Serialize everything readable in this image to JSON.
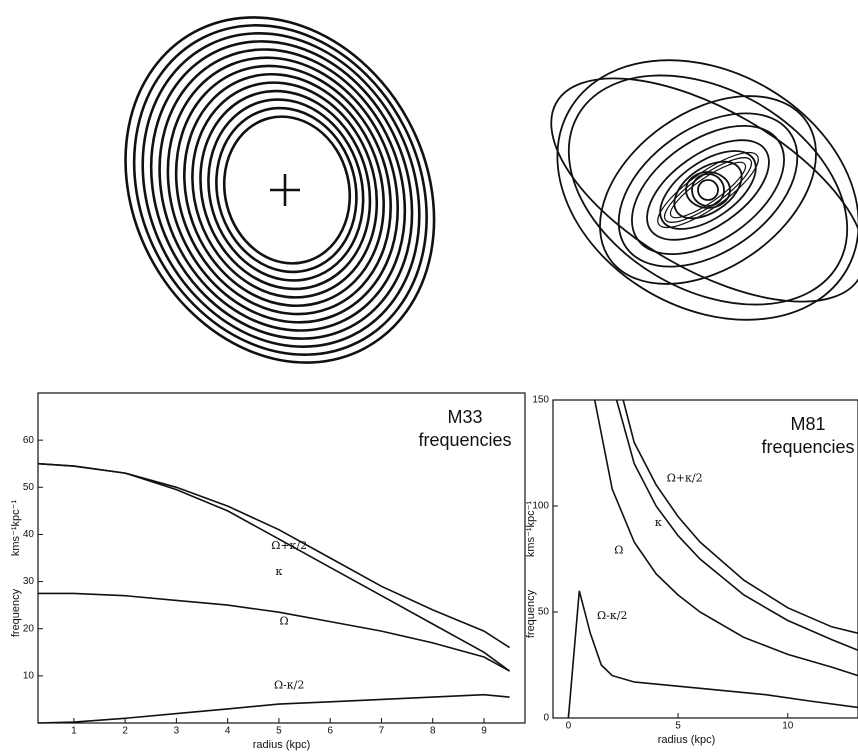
{
  "chart_data": [
    {
      "type": "line",
      "title": "M33",
      "subtitle": "frequencies",
      "ylabel": "frequency",
      "yunit": "kms⁻¹kpc⁻¹",
      "xlabel": "radius  (kpc)",
      "xlim": [
        0.3,
        9.8
      ],
      "ylim": [
        0,
        70
      ],
      "xticks": [
        1,
        2,
        3,
        4,
        5,
        6,
        7,
        8,
        9
      ],
      "yticks": [
        10,
        20,
        30,
        40,
        50,
        60
      ],
      "series": [
        {
          "name": "Ω+κ/2",
          "color": "#111",
          "x": [
            0.3,
            1,
            2,
            3,
            4,
            5,
            6,
            7,
            8,
            9,
            9.5
          ],
          "values": [
            55,
            54.5,
            53,
            50,
            46,
            41,
            35,
            29,
            24,
            19.5,
            16
          ],
          "label_at": [
            5.2,
            37.5
          ]
        },
        {
          "name": "κ",
          "color": "#111",
          "x": [
            0.3,
            1,
            2,
            3,
            4,
            5,
            6,
            7,
            8,
            9,
            9.5
          ],
          "values": [
            55,
            54.5,
            53,
            49.5,
            45,
            39,
            33,
            27,
            21,
            15,
            11
          ],
          "label_at": [
            5,
            32
          ]
        },
        {
          "name": "Ω",
          "color": "#111",
          "x": [
            0.3,
            1,
            2,
            3,
            4,
            5,
            6,
            7,
            8,
            9,
            9.5
          ],
          "values": [
            27.5,
            27.5,
            27,
            26,
            25,
            23.5,
            21.5,
            19.5,
            17,
            14,
            11
          ],
          "label_at": [
            5.1,
            21.5
          ]
        },
        {
          "name": "Ω-κ/2",
          "color": "#111",
          "x": [
            0.3,
            1,
            2,
            3,
            4,
            5,
            6,
            7,
            8,
            9,
            9.5
          ],
          "values": [
            0,
            0.2,
            1,
            2,
            3,
            4,
            4.5,
            5,
            5.5,
            6,
            5.5
          ],
          "label_at": [
            5.2,
            8
          ]
        }
      ]
    },
    {
      "type": "line",
      "title": "M81",
      "subtitle": "frequencies",
      "ylabel": "frequency",
      "yunit": "kms⁻¹kpc⁻¹",
      "xlabel": "radius  (kpc)",
      "xlim": [
        -0.7,
        13.2
      ],
      "ylim": [
        0,
        150
      ],
      "xticks": [
        0,
        5,
        10
      ],
      "yticks": [
        0,
        50,
        100,
        150
      ],
      "series": [
        {
          "name": "Ω+κ/2",
          "color": "#111",
          "x": [
            2.5,
            3,
            4,
            5,
            6,
            8,
            10,
            12,
            13.2
          ],
          "values": [
            150,
            130,
            110,
            95,
            83,
            65,
            52,
            43,
            40
          ],
          "label_at": [
            5.3,
            113
          ]
        },
        {
          "name": "κ",
          "color": "#111",
          "x": [
            2.2,
            3,
            4,
            5,
            6,
            8,
            10,
            12,
            13.2
          ],
          "values": [
            150,
            120,
            100,
            86,
            75,
            58,
            46,
            37,
            32
          ],
          "label_at": [
            4.1,
            92
          ]
        },
        {
          "name": "Ω",
          "color": "#111",
          "x": [
            1.2,
            2,
            3,
            4,
            5,
            6,
            8,
            10,
            12,
            13.2
          ],
          "values": [
            150,
            108,
            83,
            68,
            58,
            50,
            38,
            30,
            24,
            20
          ],
          "label_at": [
            2.3,
            79
          ]
        },
        {
          "name": "Ω-κ/2",
          "color": "#111",
          "x": [
            0,
            0.5,
            1,
            1.5,
            2,
            3,
            5,
            7,
            9,
            11,
            13.2
          ],
          "values": [
            0,
            60,
            40,
            25,
            20,
            17,
            15,
            13,
            11,
            8,
            5
          ],
          "label_at": [
            2,
            48
          ]
        }
      ]
    }
  ]
}
